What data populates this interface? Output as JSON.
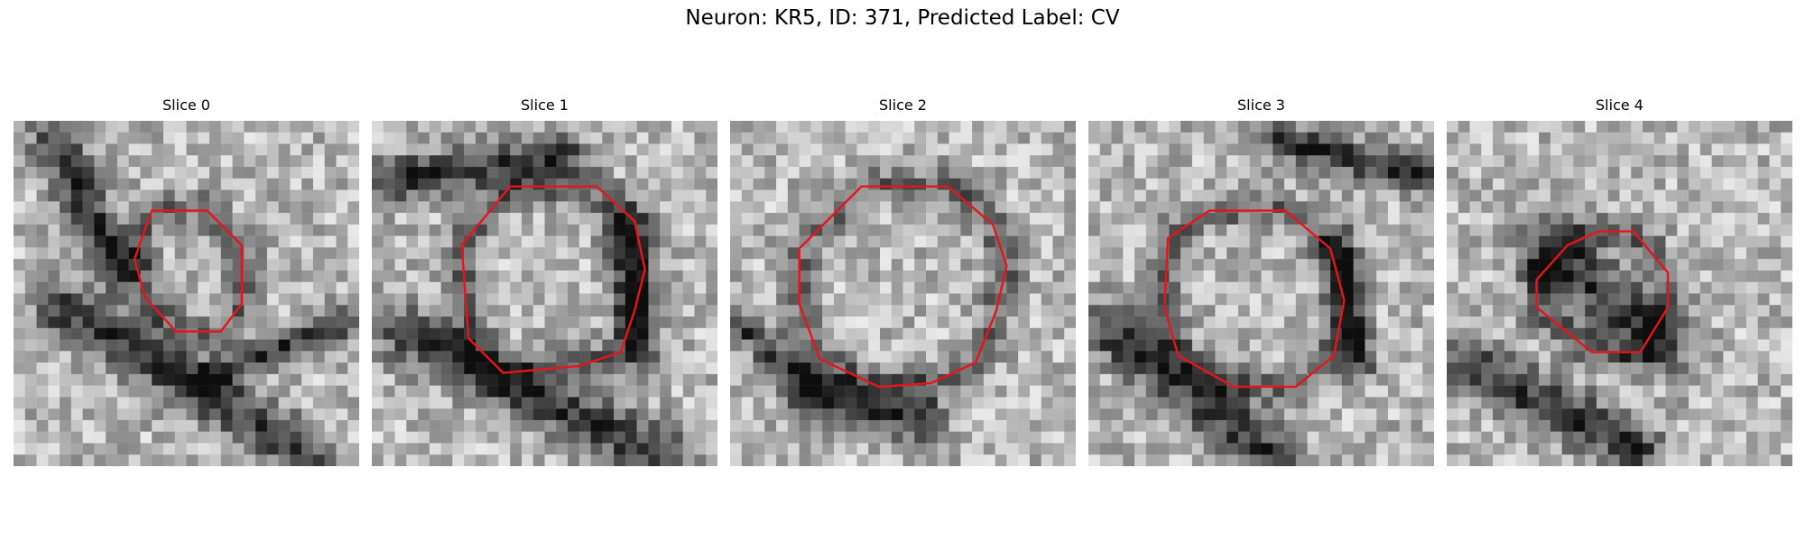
{
  "title": "Neuron: KR5, ID: 371, Predicted Label: CV",
  "contour_color": "#e8141a",
  "slices": [
    {
      "label": "Slice 0",
      "contour": [
        [
          0.4,
          0.26
        ],
        [
          0.56,
          0.26
        ],
        [
          0.66,
          0.36
        ],
        [
          0.66,
          0.53
        ],
        [
          0.6,
          0.61
        ],
        [
          0.47,
          0.61
        ],
        [
          0.38,
          0.51
        ],
        [
          0.35,
          0.4
        ]
      ],
      "dark_regions": [
        [
          0.15,
          0.55,
          0.85,
          0.97,
          0.11
        ],
        [
          0.3,
          0.42,
          0.12,
          0.06,
          0.1
        ],
        [
          0.55,
          0.75,
          0.95,
          0.58,
          0.07
        ]
      ]
    },
    {
      "label": "Slice 1",
      "contour": [
        [
          0.4,
          0.19
        ],
        [
          0.65,
          0.19
        ],
        [
          0.76,
          0.29
        ],
        [
          0.79,
          0.43
        ],
        [
          0.76,
          0.55
        ],
        [
          0.72,
          0.67
        ],
        [
          0.6,
          0.71
        ],
        [
          0.38,
          0.73
        ],
        [
          0.28,
          0.63
        ],
        [
          0.26,
          0.36
        ]
      ],
      "dark_regions": [
        [
          0.1,
          0.62,
          0.85,
          0.97,
          0.11
        ],
        [
          0.05,
          0.17,
          0.55,
          0.1,
          0.09
        ],
        [
          0.72,
          0.3,
          0.78,
          0.65,
          0.08
        ]
      ]
    },
    {
      "label": "Slice 2",
      "contour": [
        [
          0.38,
          0.19
        ],
        [
          0.63,
          0.19
        ],
        [
          0.76,
          0.3
        ],
        [
          0.8,
          0.42
        ],
        [
          0.77,
          0.55
        ],
        [
          0.71,
          0.7
        ],
        [
          0.58,
          0.76
        ],
        [
          0.43,
          0.77
        ],
        [
          0.26,
          0.69
        ],
        [
          0.2,
          0.53
        ],
        [
          0.2,
          0.37
        ]
      ],
      "dark_regions": [
        [
          0.25,
          0.8,
          0.55,
          0.86,
          0.1
        ],
        [
          0.05,
          0.6,
          0.2,
          0.75,
          0.07
        ]
      ]
    },
    {
      "label": "Slice 3",
      "contour": [
        [
          0.35,
          0.26
        ],
        [
          0.57,
          0.26
        ],
        [
          0.7,
          0.37
        ],
        [
          0.74,
          0.52
        ],
        [
          0.71,
          0.68
        ],
        [
          0.6,
          0.77
        ],
        [
          0.42,
          0.77
        ],
        [
          0.26,
          0.68
        ],
        [
          0.22,
          0.54
        ],
        [
          0.23,
          0.34
        ]
      ],
      "dark_regions": [
        [
          0.05,
          0.6,
          0.55,
          0.98,
          0.11
        ],
        [
          0.55,
          0.06,
          0.95,
          0.15,
          0.08
        ],
        [
          0.72,
          0.35,
          0.78,
          0.7,
          0.07
        ]
      ]
    },
    {
      "label": "Slice 4",
      "contour": [
        [
          0.44,
          0.32
        ],
        [
          0.54,
          0.32
        ],
        [
          0.64,
          0.44
        ],
        [
          0.64,
          0.54
        ],
        [
          0.56,
          0.67
        ],
        [
          0.42,
          0.67
        ],
        [
          0.26,
          0.54
        ],
        [
          0.26,
          0.46
        ],
        [
          0.35,
          0.36
        ]
      ],
      "dark_regions": [
        [
          0.3,
          0.38,
          0.62,
          0.64,
          0.13
        ],
        [
          0.05,
          0.7,
          0.55,
          0.95,
          0.11
        ]
      ]
    }
  ]
}
